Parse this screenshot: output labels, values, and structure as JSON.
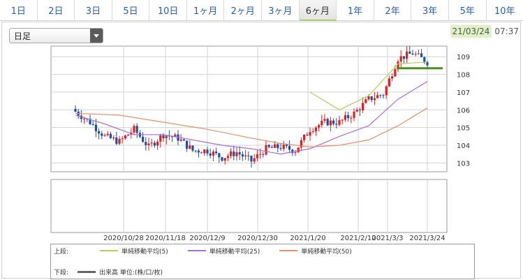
{
  "tabs": [
    {
      "label": "1日",
      "active": false
    },
    {
      "label": "2日",
      "active": false
    },
    {
      "label": "3日",
      "active": false
    },
    {
      "label": "5日",
      "active": false
    },
    {
      "label": "10日",
      "active": false
    },
    {
      "label": "1ヶ月",
      "active": false
    },
    {
      "label": "2ヶ月",
      "active": false
    },
    {
      "label": "3ヶ月",
      "active": false
    },
    {
      "label": "6ヶ月",
      "active": true
    },
    {
      "label": "1年",
      "active": false
    },
    {
      "label": "2年",
      "active": false
    },
    {
      "label": "3年",
      "active": false
    },
    {
      "label": "5年",
      "active": false
    },
    {
      "label": "10年",
      "active": false
    }
  ],
  "period_select": {
    "value": "日足"
  },
  "timestamp": {
    "date": "21/03/24",
    "time": "07:37"
  },
  "legend": {
    "upper_label": "上段:",
    "lower_label": "下段:",
    "upper_items": [
      {
        "label": "単純移動平均(5)",
        "color": "#b8cc5a"
      },
      {
        "label": "単純移動平均(25)",
        "color": "#a86fd6"
      },
      {
        "label": "単純移動平均(50)",
        "color": "#e3906c"
      }
    ],
    "lower_items": [
      {
        "label": "出来高 単位:(株/口/枚)",
        "color": "#666666"
      }
    ]
  },
  "colors": {
    "up": "#e02020",
    "down": "#1f4fa0",
    "grid": "#d3d3d3",
    "last_price_line": "#4a8f1e"
  },
  "chart_data": {
    "type": "candlestick",
    "price_axis": {
      "ticks": [
        103,
        104,
        105,
        106,
        107,
        108,
        109
      ],
      "ylim": [
        102.5,
        109.6
      ]
    },
    "x_tick_labels": [
      "2020/10/28",
      "2020/11/18",
      "2020/12/9",
      "2020/12/30",
      "2021/1/20",
      "2021/2/10",
      "2021/3/3",
      "2021/3/24"
    ],
    "last_price": 108.35,
    "weekly_close": [
      105.9,
      105.3,
      104.5,
      104.2,
      104.9,
      103.9,
      104.6,
      104.4,
      103.7,
      103.7,
      103.3,
      103.6,
      103.1,
      103.8,
      103.9,
      103.7,
      104.9,
      105.3,
      105.3,
      105.8,
      106.6,
      106.9,
      108.9,
      109.2,
      108.7
    ],
    "series": [
      {
        "name": "単純移動平均(5)",
        "points": [
          [
            16,
            107.0
          ],
          [
            18,
            106.0
          ],
          [
            20,
            106.8
          ],
          [
            22,
            108.6
          ],
          [
            24,
            108.7
          ]
        ]
      },
      {
        "name": "単純移動平均(25)",
        "points": [
          [
            0,
            105.7
          ],
          [
            2,
            105.2
          ],
          [
            4,
            104.6
          ],
          [
            6,
            104.6
          ],
          [
            8,
            104.3
          ],
          [
            10,
            104.0
          ],
          [
            12,
            103.8
          ],
          [
            14,
            103.5
          ],
          [
            16,
            103.8
          ],
          [
            18,
            104.5
          ],
          [
            20,
            105.1
          ],
          [
            22,
            106.6
          ],
          [
            24,
            107.6
          ]
        ]
      },
      {
        "name": "単純移動平均(50)",
        "points": [
          [
            0,
            105.8
          ],
          [
            3,
            105.7
          ],
          [
            6,
            105.3
          ],
          [
            9,
            104.9
          ],
          [
            12,
            104.4
          ],
          [
            14,
            104.1
          ],
          [
            16,
            103.9
          ],
          [
            18,
            104.0
          ],
          [
            20,
            104.3
          ],
          [
            22,
            105.1
          ],
          [
            24,
            106.1
          ]
        ]
      }
    ]
  }
}
